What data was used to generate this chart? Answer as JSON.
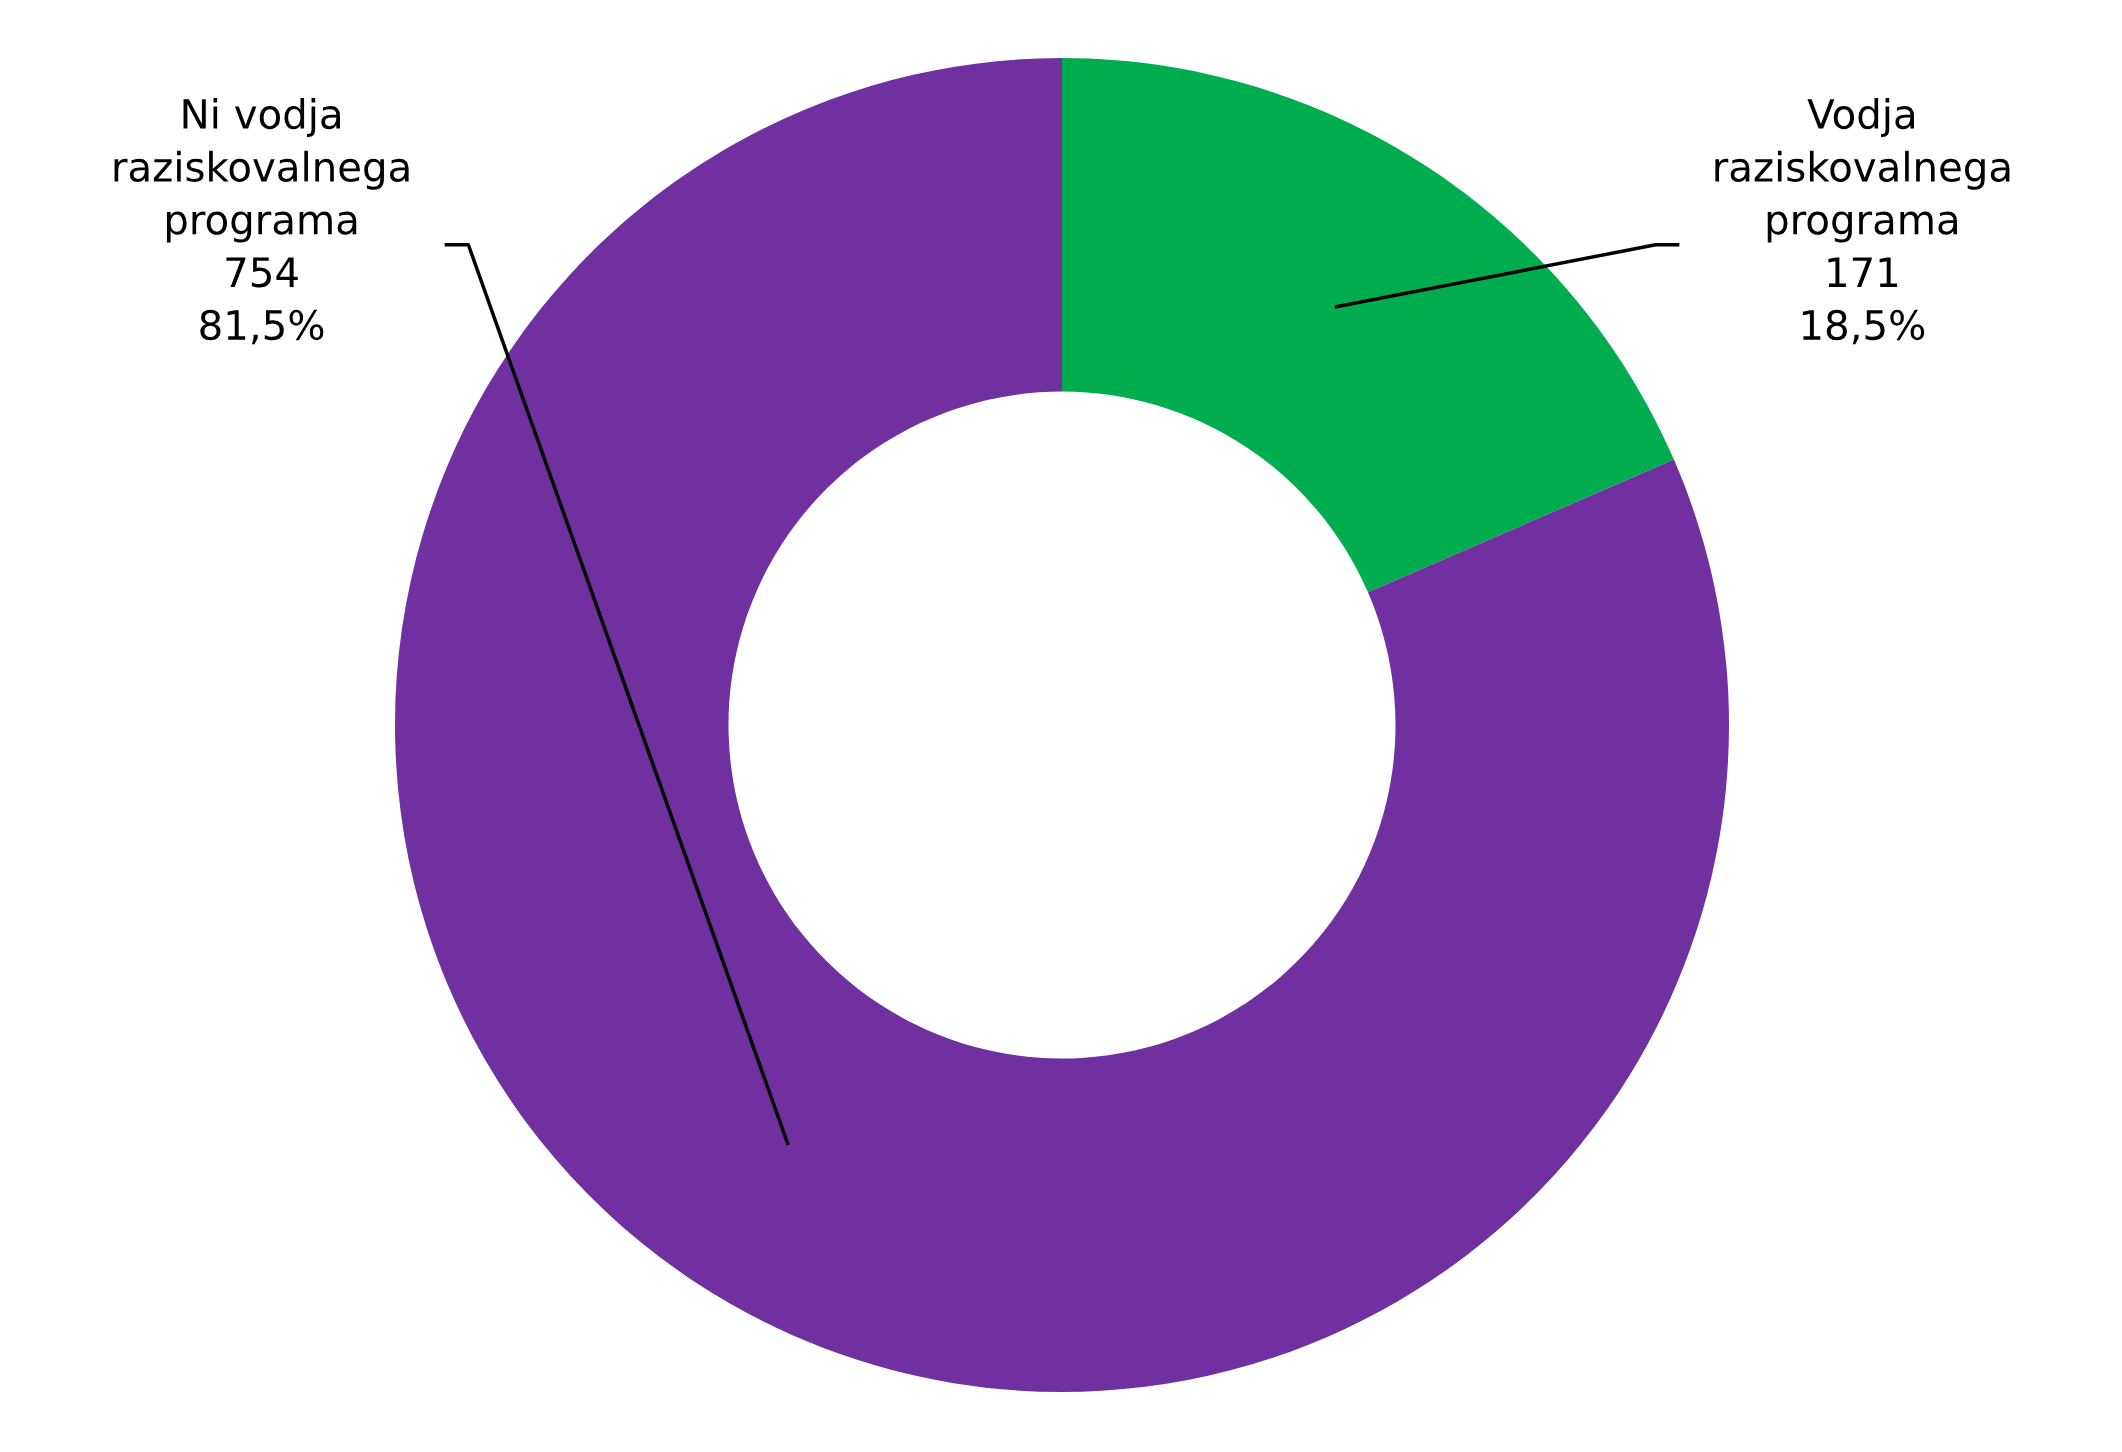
{
  "chart_data": {
    "type": "donut",
    "categories": [
      "Vodja\nraziskovalnega\nprograma",
      "Ni vodja\nraziskovalnega\nprograma"
    ],
    "values": [
      171,
      754
    ],
    "colors": [
      "#00ad4e",
      "#70309f"
    ],
    "value_labels": [
      "171\n18,5%",
      "754\n81,5%"
    ]
  }
}
